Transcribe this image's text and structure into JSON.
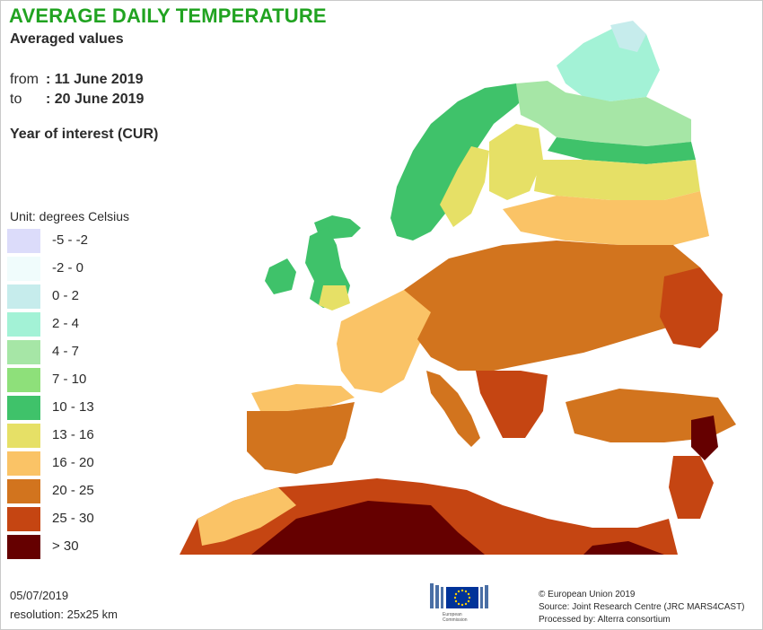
{
  "header": {
    "title": "AVERAGE DAILY TEMPERATURE",
    "subtitle": "Averaged values",
    "from_key": "from",
    "from_value": ": 11 June 2019",
    "to_key": "to",
    "to_value": ": 20 June 2019",
    "year_label": "Year of interest (CUR)"
  },
  "legend": {
    "unit": "Unit: degrees Celsius",
    "items": [
      {
        "label": "-5 - -2",
        "color": "#dcdcfa"
      },
      {
        "label": "-2 - 0",
        "color": "#f0fcfc"
      },
      {
        "label": "0 - 2",
        "color": "#c6ecec"
      },
      {
        "label": "2 - 4",
        "color": "#a3f2d6"
      },
      {
        "label": "4 - 7",
        "color": "#a6e6a6"
      },
      {
        "label": "7 - 10",
        "color": "#8ee07a"
      },
      {
        "label": "10 - 13",
        "color": "#3fc26a"
      },
      {
        "label": "13 - 16",
        "color": "#e6e066"
      },
      {
        "label": "16 - 20",
        "color": "#fac366"
      },
      {
        "label": "20 - 25",
        "color": "#d2741e"
      },
      {
        "label": "25 - 30",
        "color": "#c54512"
      },
      {
        "label": "> 30",
        "color": "#650000"
      }
    ]
  },
  "footer": {
    "date": "05/07/2019",
    "resolution": "resolution: 25x25 km",
    "copyright": "© European Union 2019",
    "source": "Source: Joint Research Centre (JRC MARS4CAST)",
    "processed": "Processed by: Alterra consortium",
    "logo_text_1": "European",
    "logo_text_2": "Commission"
  }
}
